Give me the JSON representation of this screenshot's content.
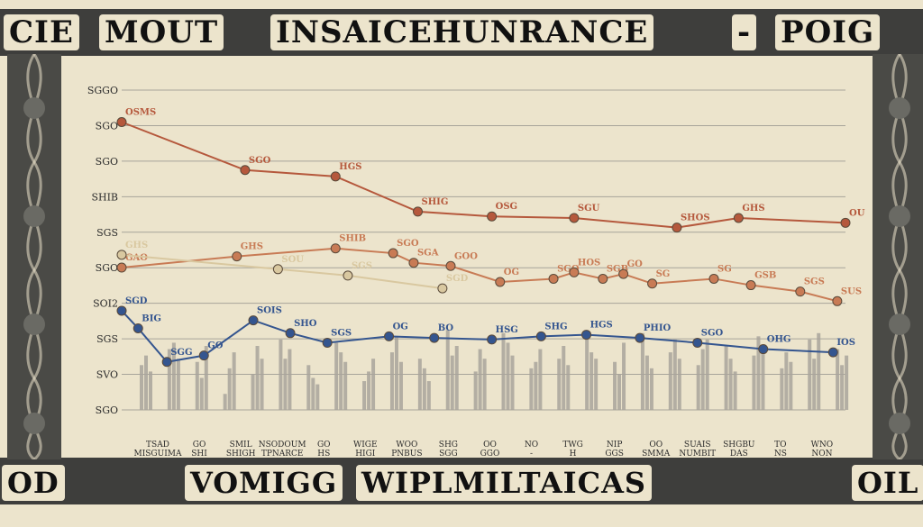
{
  "banner": {
    "top": [
      "CIE",
      "MOUT",
      "INSAICEHUNRANCE",
      "-",
      "POIG"
    ],
    "bottom": [
      "OD",
      "VOMIGG",
      "WIPLMILTAICAS",
      "OIL"
    ]
  },
  "colors": {
    "red": "#b5583c",
    "orange": "#c87b55",
    "cream": "#d9c8a0",
    "blue": "#34558f",
    "bar": "#a9a49b",
    "grid": "#8a8a86",
    "paper": "#ece4cc",
    "frame": "#3e3e3c"
  },
  "chart_data": {
    "type": "line",
    "ylim": [
      0,
      10
    ],
    "y_tick_labels": [
      "SGGO",
      "SGO",
      "SGO",
      "SHIB",
      "SGS",
      "SGO",
      "SOI2",
      "SGS",
      "SVO",
      "SGO"
    ],
    "x_tick_labels": [
      [
        "TSAD",
        "MISGUIMA"
      ],
      [
        "GO",
        "SHI"
      ],
      [
        "SMIL",
        "SHIGH"
      ],
      [
        "NSODOUM",
        "TPNARCE"
      ],
      [
        "GO",
        "HS"
      ],
      [
        "WIGE",
        "HIGI"
      ],
      [
        "WOO",
        "PNBUS"
      ],
      [
        "SHG",
        "SGG"
      ],
      [
        "OO",
        "GGO"
      ],
      [
        "NO",
        "-"
      ],
      [
        "TWG",
        "H"
      ],
      [
        "NIP",
        "GGS"
      ],
      [
        "OO",
        "SMMA"
      ],
      [
        "SUAIS",
        "NUMBIT"
      ],
      [
        "SHGBU",
        "DAS"
      ],
      [
        "TO",
        "NS"
      ],
      [
        "WNO",
        "NON"
      ]
    ],
    "series": [
      {
        "color": "#b5583c",
        "x": [
          0,
          3,
          5.2,
          7.2,
          9,
          11,
          13.5,
          15,
          17.6
        ],
        "y": [
          9.0,
          7.5,
          7.3,
          6.2,
          6.05,
          6.0,
          5.7,
          6.0,
          5.85
        ],
        "labels": [
          "OSMS",
          "SGO",
          "HGS",
          "SHIG",
          "OSG",
          "SGU",
          "SHOS",
          "GHS",
          "OU"
        ]
      },
      {
        "color": "#c87b55",
        "x": [
          0,
          2.8,
          5.2,
          6.6,
          7.1,
          8,
          9.2,
          10.5,
          11,
          11.7,
          12.2,
          12.9,
          14.4,
          15.3,
          16.5,
          17.4
        ],
        "y": [
          4.45,
          4.8,
          5.05,
          4.9,
          4.6,
          4.5,
          4.0,
          4.1,
          4.3,
          4.1,
          4.25,
          3.95,
          4.1,
          3.9,
          3.7,
          3.4
        ],
        "labels": [
          "GAO",
          "GHS",
          "SHIB",
          "SGO",
          "SGA",
          "GOO",
          "OG",
          "SGO",
          "HOS",
          "SGB",
          "GO",
          "SG",
          "SG",
          "GSB",
          "SGS",
          "SUS"
        ]
      },
      {
        "color": "#d9c8a0",
        "x": [
          0,
          3.8,
          5.5,
          7.8
        ],
        "y": [
          4.85,
          4.4,
          4.2,
          3.8
        ],
        "labels": [
          "GHS",
          "SOU",
          "SGS",
          "SGD"
        ]
      },
      {
        "color": "#34558f",
        "x": [
          0,
          0.4,
          1.1,
          2,
          3.2,
          4.1,
          5.0,
          6.5,
          7.6,
          9,
          10.2,
          11.3,
          12.6,
          14.0,
          15.6,
          17.3
        ],
        "y": [
          3.1,
          2.55,
          1.5,
          1.7,
          2.8,
          2.4,
          2.1,
          2.3,
          2.25,
          2.2,
          2.3,
          2.35,
          2.25,
          2.1,
          1.9,
          1.8
        ],
        "labels": [
          "SGD",
          "BIG",
          "SGG",
          "GO",
          "SOIS",
          "SHO",
          "SGS",
          "OG",
          "BO",
          "HSG",
          "SHG",
          "HGS",
          "PHIO",
          "SGO",
          "OHG",
          "IOS"
        ]
      }
    ],
    "bars": [
      [
        1.4,
        1.7,
        1.2
      ],
      [
        1.9,
        2.1,
        1.6
      ],
      [
        1.5,
        1.0,
        2.0
      ],
      [
        0.5,
        1.3,
        1.8
      ],
      [
        1.1,
        2.0,
        1.6
      ],
      [
        2.2,
        1.6,
        1.9
      ],
      [
        1.4,
        1.0,
        0.8
      ],
      [
        2.1,
        1.8,
        1.5
      ],
      [
        0.9,
        1.2,
        1.6
      ],
      [
        1.8,
        2.3,
        1.5
      ],
      [
        1.6,
        1.3,
        0.9
      ],
      [
        2.5,
        1.7,
        2.0
      ],
      [
        1.2,
        1.9,
        1.6
      ],
      [
        2.4,
        2.1,
        1.7
      ],
      [
        1.3,
        1.5,
        1.9
      ],
      [
        1.6,
        2.0,
        1.4
      ],
      [
        2.3,
        1.8,
        1.6
      ],
      [
        1.5,
        1.1,
        2.1
      ],
      [
        2.4,
        1.7,
        1.3
      ],
      [
        1.8,
        2.2,
        1.6
      ],
      [
        1.4,
        1.9,
        2.2
      ],
      [
        2.0,
        1.6,
        1.2
      ],
      [
        1.7,
        2.3,
        1.9
      ],
      [
        1.3,
        1.8,
        1.5
      ],
      [
        2.2,
        1.6,
        2.4
      ],
      [
        1.9,
        1.4,
        1.7
      ]
    ]
  }
}
